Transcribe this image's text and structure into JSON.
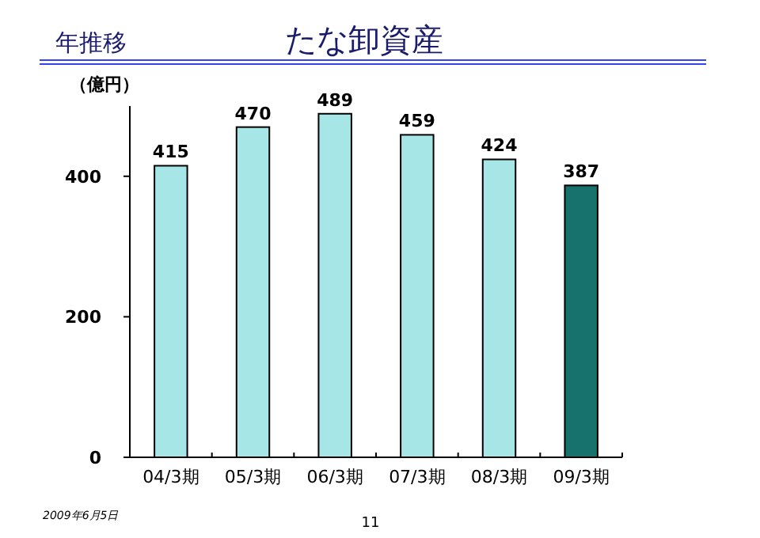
{
  "chart_data": {
    "type": "bar",
    "title": "たな卸資産",
    "subtitle": "年推移",
    "ylabel": "（億円）",
    "categories": [
      "04/3期",
      "05/3期",
      "06/3期",
      "07/3期",
      "08/3期",
      "09/3期"
    ],
    "values": [
      415,
      470,
      489,
      459,
      424,
      387
    ],
    "colors": [
      "#a6e6e6",
      "#a6e6e6",
      "#a6e6e6",
      "#a6e6e6",
      "#a6e6e6",
      "#17716c"
    ],
    "ylim": [
      0,
      500
    ],
    "yticks": [
      0,
      200,
      400
    ],
    "data_labels": true,
    "annotations": [
      "2009年6月5日",
      "11"
    ]
  }
}
